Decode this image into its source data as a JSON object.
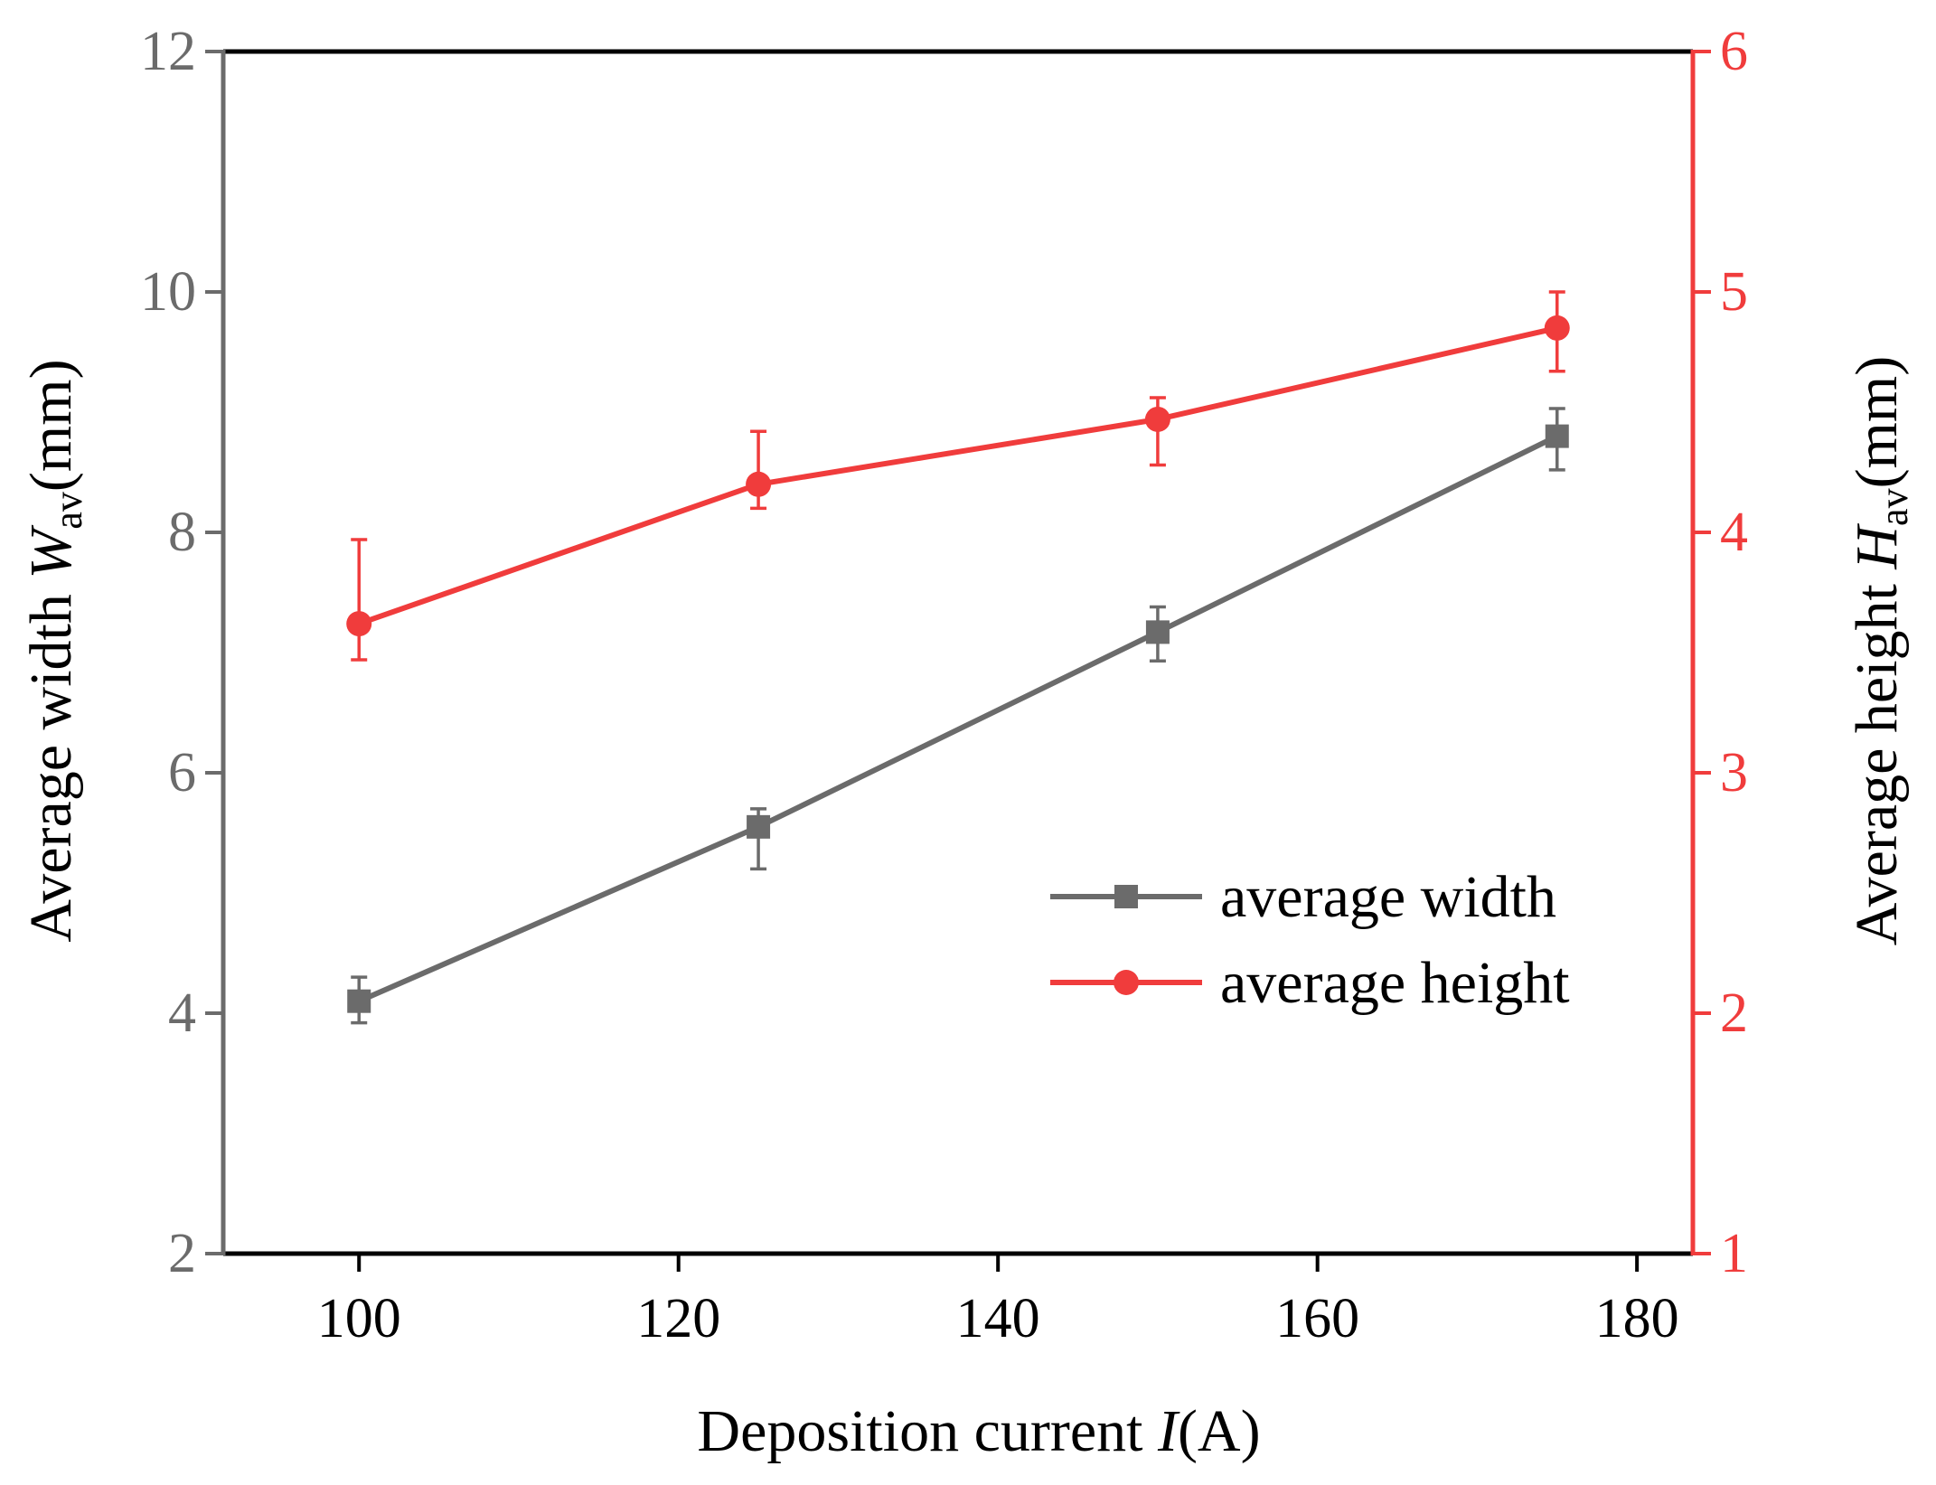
{
  "chart_data": {
    "type": "line",
    "title": "",
    "xlabel": "Deposition current",
    "xlabel_var": "I",
    "xlabel_unit": "(A)",
    "xlim": [
      91.5,
      183.5
    ],
    "xticks": [
      "100",
      "120",
      "140",
      "160",
      "180"
    ],
    "y_left": {
      "label_prefix": "Average width ",
      "label_var": "W",
      "label_sub": "av",
      "label_unit": "(mm)",
      "ylim": [
        2,
        12
      ],
      "ticks": [
        "2",
        "4",
        "6",
        "8",
        "10",
        "12"
      ],
      "color": "#6b6b6b"
    },
    "y_right": {
      "label_prefix": "Average height ",
      "label_var": "H",
      "label_sub": "av",
      "label_unit": "(mm)",
      "ylim": [
        1,
        6
      ],
      "ticks": [
        "1",
        "2",
        "3",
        "4",
        "5",
        "6"
      ],
      "color": "#f03c3c"
    },
    "x": [
      100,
      125,
      150,
      175
    ],
    "series": [
      {
        "name": "average width",
        "axis": "left",
        "color": "#6b6b6b",
        "marker": "square",
        "values": [
          4.1,
          5.55,
          7.17,
          8.8
        ],
        "err_low": [
          3.92,
          5.2,
          6.93,
          8.52
        ],
        "err_high": [
          4.3,
          5.7,
          7.38,
          9.03
        ]
      },
      {
        "name": "average height",
        "axis": "right",
        "color": "#f03c3c",
        "marker": "circle",
        "values": [
          3.62,
          4.2,
          4.47,
          4.85
        ],
        "err_low": [
          3.47,
          4.1,
          4.28,
          4.67
        ],
        "err_high": [
          3.97,
          4.42,
          4.56,
          5.0
        ]
      }
    ],
    "legend_position": "center-right"
  }
}
